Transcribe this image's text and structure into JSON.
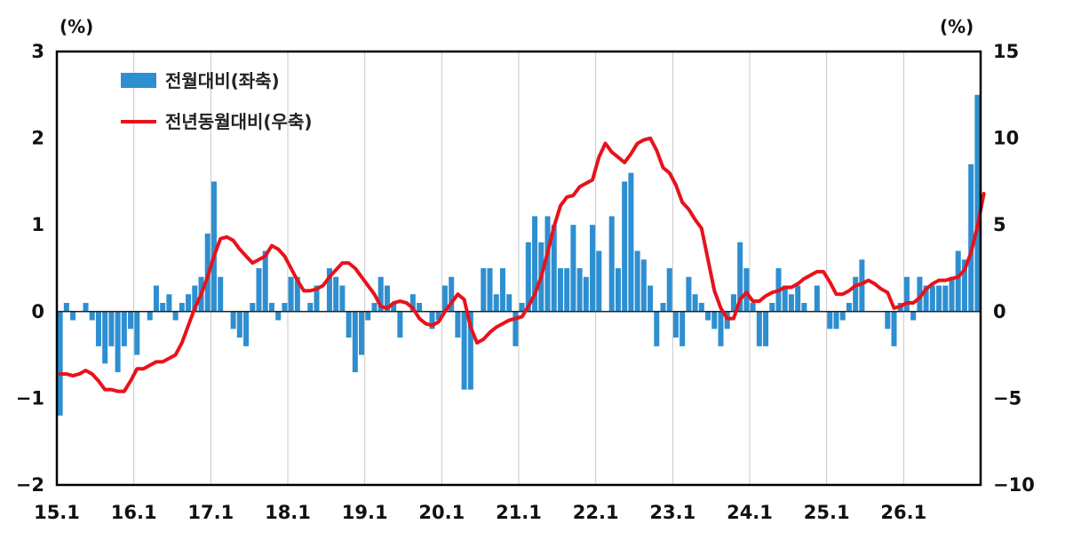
{
  "chart_data": {
    "type": "bar+line",
    "left_unit": "(%)",
    "right_unit": "(%)",
    "x_tick_labels": [
      "15.1",
      "16.1",
      "17.1",
      "18.1",
      "19.1",
      "20.1",
      "21.1",
      "22.1",
      "23.1",
      "24.1",
      "25.1",
      "26.1"
    ],
    "y_left": {
      "ylim": [
        -2,
        3
      ],
      "ticks": [
        -2,
        -1,
        0,
        1,
        2,
        3
      ],
      "tick_labels": [
        "−2",
        "−1",
        "0",
        "1",
        "2",
        "3"
      ]
    },
    "y_right": {
      "ylim": [
        -10,
        15
      ],
      "ticks": [
        -10,
        -5,
        0,
        5,
        10,
        15
      ],
      "tick_labels": [
        "−10",
        "−5",
        "0",
        "5",
        "10",
        "15"
      ]
    },
    "legend": [
      {
        "label": "전월대비(좌축)",
        "kind": "bar",
        "color": "#2e8fd0"
      },
      {
        "label": "전년동월대비(우축)",
        "kind": "line",
        "color": "#e8121c"
      }
    ],
    "grid": "vertical-at-year-ticks",
    "series": [
      {
        "axis": "left",
        "type": "bar",
        "color": "#2e8fd0",
        "values": [
          -1.2,
          0.1,
          -0.1,
          0,
          0.1,
          -0.1,
          -0.4,
          -0.6,
          -0.4,
          -0.7,
          -0.4,
          -0.2,
          -0.5,
          0,
          -0.1,
          0.3,
          0.1,
          0.2,
          -0.1,
          0.1,
          0.2,
          0.3,
          0.4,
          0.9,
          1.5,
          0.4,
          0,
          -0.2,
          -0.3,
          -0.4,
          0.1,
          0.5,
          0.7,
          0.1,
          -0.1,
          0.1,
          0.4,
          0.4,
          0,
          0.1,
          0.3,
          0,
          0.5,
          0.4,
          0.3,
          -0.3,
          -0.7,
          -0.5,
          -0.1,
          0.1,
          0.4,
          0.3,
          0.1,
          -0.3,
          0,
          0.2,
          0.1,
          0,
          -0.2,
          -0.1,
          0.3,
          0.4,
          -0.3,
          -0.9,
          -0.9,
          0,
          0.5,
          0.5,
          0.2,
          0.5,
          0.2,
          -0.4,
          0.1,
          0.8,
          1.1,
          0.8,
          1.1,
          1.0,
          0.5,
          0.5,
          1.0,
          0.5,
          0.4,
          1.0,
          0.7,
          0,
          1.1,
          0.5,
          1.5,
          1.6,
          0.7,
          0.6,
          0.3,
          -0.4,
          0.1,
          0.5,
          -0.3,
          -0.4,
          0.4,
          0.2,
          0.1,
          -0.1,
          -0.2,
          -0.4,
          -0.2,
          0.2,
          0.8,
          0.5,
          0.1,
          -0.4,
          -0.4,
          0.1,
          0.5,
          0.3,
          0.2,
          0.3,
          0.1,
          0,
          0.3,
          0,
          -0.2,
          -0.2,
          -0.1,
          0.1,
          0.4,
          0.6,
          0,
          0,
          0,
          -0.2,
          -0.4,
          0.1,
          0.4,
          -0.1,
          0.4,
          0.3,
          0.3,
          0.3,
          0.3,
          0.4,
          0.7,
          0.6,
          1.7,
          2.5
        ]
      },
      {
        "axis": "right",
        "type": "line",
        "color": "#e8121c",
        "values": [
          -3.6,
          -3.6,
          -3.7,
          -3.6,
          -3.4,
          -3.6,
          -4.0,
          -4.5,
          -4.5,
          -4.6,
          -4.6,
          -4.0,
          -3.3,
          -3.3,
          -3.1,
          -2.9,
          -2.9,
          -2.7,
          -2.5,
          -1.8,
          -0.8,
          0.2,
          1.0,
          2.0,
          3.2,
          4.2,
          4.3,
          4.1,
          3.6,
          3.2,
          2.8,
          3.0,
          3.2,
          3.8,
          3.6,
          3.2,
          2.5,
          1.8,
          1.2,
          1.2,
          1.3,
          1.5,
          2.0,
          2.4,
          2.8,
          2.8,
          2.5,
          2.0,
          1.5,
          1.0,
          0.3,
          0.2,
          0.5,
          0.6,
          0.5,
          0.2,
          -0.4,
          -0.7,
          -0.8,
          -0.6,
          0,
          0.5,
          1.0,
          0.7,
          -0.9,
          -1.8,
          -1.6,
          -1.2,
          -0.9,
          -0.7,
          -0.5,
          -0.4,
          -0.3,
          0.3,
          1.0,
          2.0,
          3.4,
          4.9,
          6.1,
          6.6,
          6.7,
          7.2,
          7.4,
          7.6,
          8.9,
          9.7,
          9.2,
          8.9,
          8.6,
          9.1,
          9.7,
          9.9,
          10.0,
          9.3,
          8.3,
          8.0,
          7.3,
          6.3,
          5.9,
          5.3,
          4.8,
          3.0,
          1.2,
          0.2,
          -0.4,
          -0.4,
          0.7,
          1.1,
          0.6,
          0.6,
          0.9,
          1.1,
          1.2,
          1.4,
          1.4,
          1.6,
          1.9,
          2.1,
          2.3,
          2.3,
          1.7,
          1.0,
          1.0,
          1.2,
          1.5,
          1.6,
          1.8,
          1.6,
          1.3,
          1.1,
          0.2,
          0.3,
          0.5,
          0.5,
          0.8,
          1.3,
          1.6,
          1.8,
          1.8,
          1.9,
          2.0,
          2.4,
          3.4,
          4.9,
          6.8
        ]
      }
    ]
  }
}
